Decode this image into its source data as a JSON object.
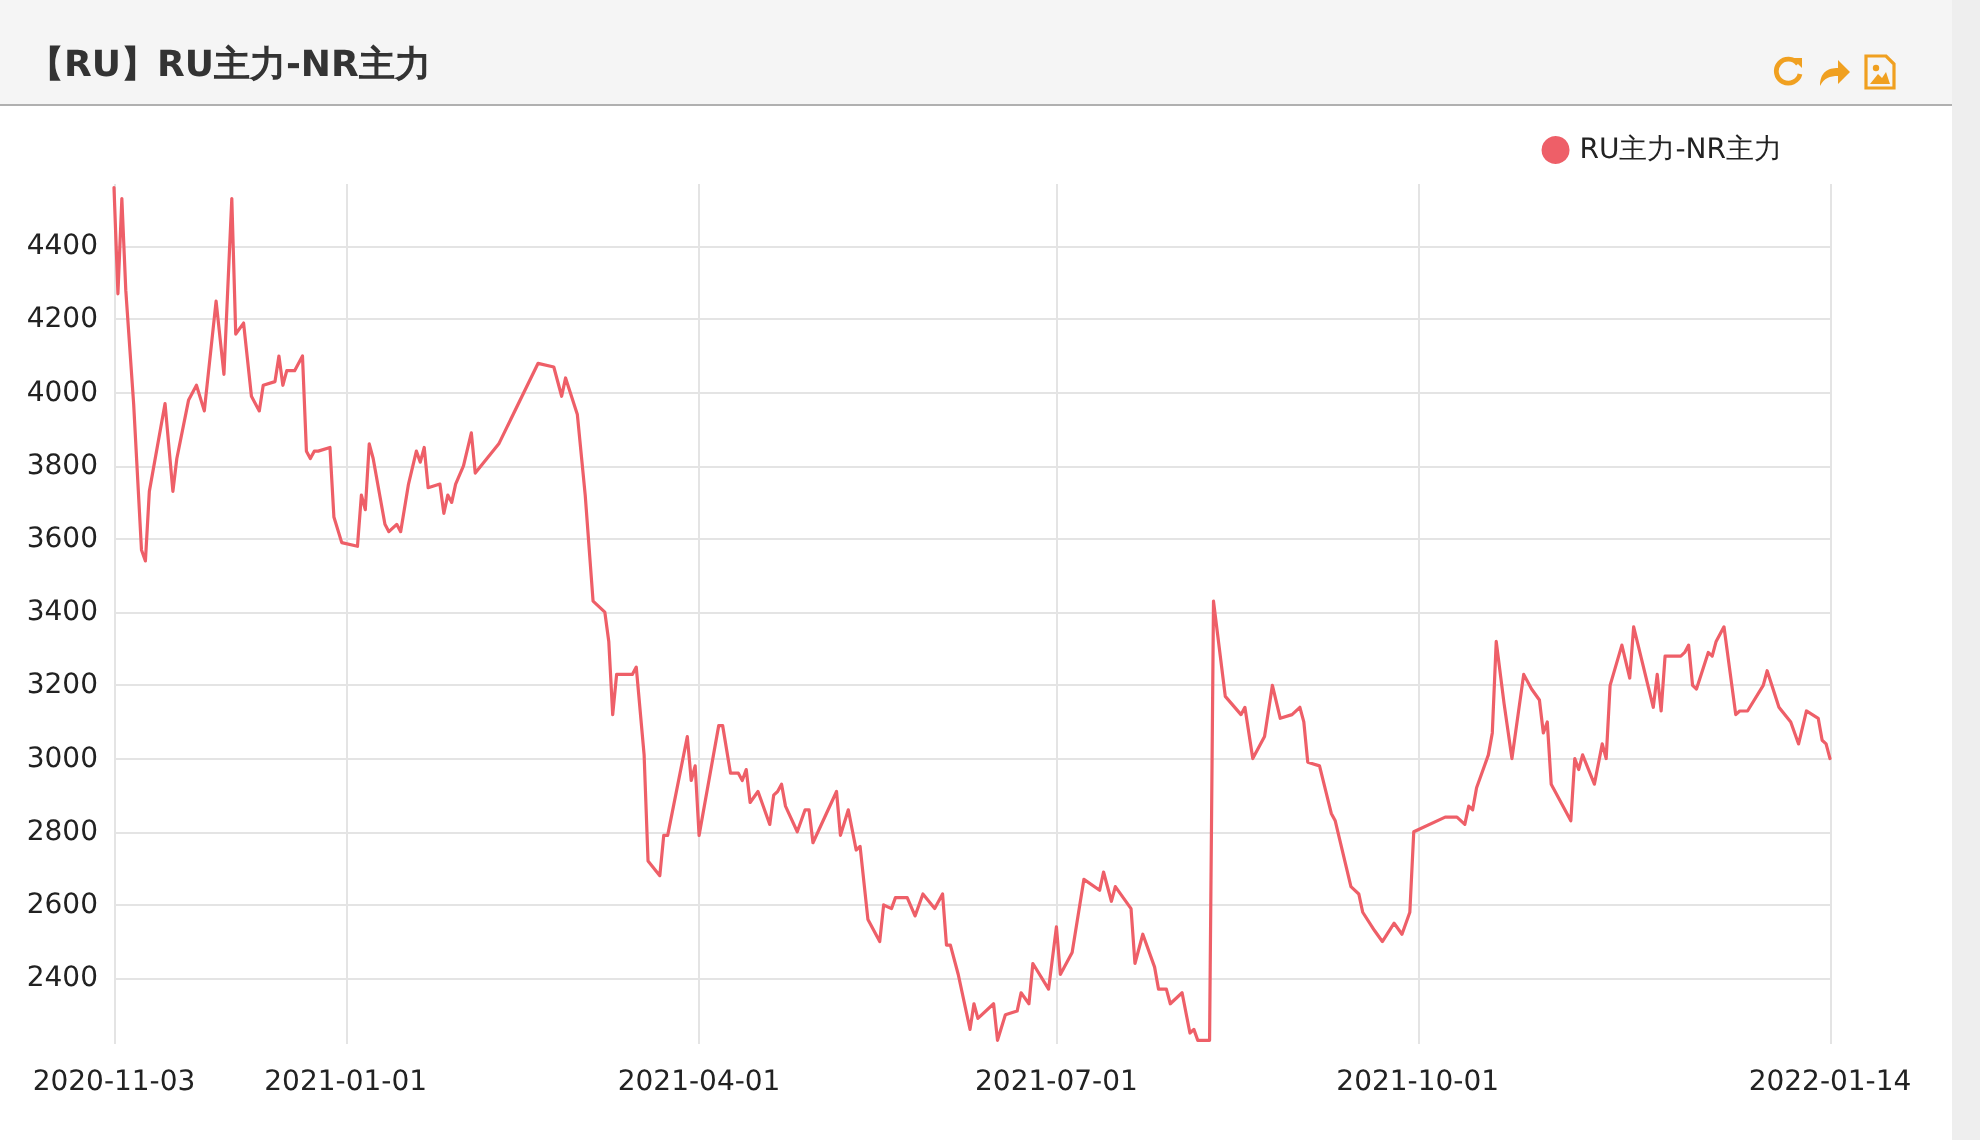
{
  "chart_data": {
    "type": "line",
    "title": "【RU】RU主力-NR主力",
    "xlim": [
      "2020-11-03",
      "2022-01-14"
    ],
    "xticks": [
      "2020-11-03",
      "2021-01-01",
      "2021-04-01",
      "2021-07-01",
      "2021-10-01",
      "2022-01-14"
    ],
    "ylim": [
      2220,
      4570
    ],
    "yticks": [
      2400,
      2600,
      2800,
      3000,
      3200,
      3400,
      3600,
      3800,
      4000,
      4200,
      4400
    ],
    "grid": true,
    "legend": "top right",
    "marker": "none",
    "line_style": "solid",
    "series": [
      {
        "name": "RU主力-NR主力",
        "color": "#ee5f68",
        "x": [
          "2020-11-03",
          "2020-11-04",
          "2020-11-05",
          "2020-11-06",
          "2020-11-08",
          "2020-11-10",
          "2020-11-11",
          "2020-11-12",
          "2020-11-16",
          "2020-11-18",
          "2020-11-19",
          "2020-11-22",
          "2020-11-24",
          "2020-11-26",
          "2020-11-29",
          "2020-12-01",
          "2020-12-03",
          "2020-12-04",
          "2020-12-06",
          "2020-12-08",
          "2020-12-10",
          "2020-12-11",
          "2020-12-14",
          "2020-12-15",
          "2020-12-16",
          "2020-12-17",
          "2020-12-19",
          "2020-12-21",
          "2020-12-22",
          "2020-12-23",
          "2020-12-24",
          "2020-12-25",
          "2020-12-28",
          "2020-12-29",
          "2020-12-31",
          "2021-01-04",
          "2021-01-05",
          "2021-01-06",
          "2021-01-07",
          "2021-01-08",
          "2021-01-11",
          "2021-01-12",
          "2021-01-14",
          "2021-01-15",
          "2021-01-17",
          "2021-01-19",
          "2021-01-20",
          "2021-01-21",
          "2021-01-22",
          "2021-01-25",
          "2021-01-26",
          "2021-01-27",
          "2021-01-28",
          "2021-01-29",
          "2021-01-31",
          "2021-02-02",
          "2021-02-03",
          "2021-02-09",
          "2021-02-19",
          "2021-02-23",
          "2021-02-25",
          "2021-02-26",
          "2021-03-01",
          "2021-03-03",
          "2021-03-05",
          "2021-03-08",
          "2021-03-09",
          "2021-03-10",
          "2021-03-11",
          "2021-03-15",
          "2021-03-16",
          "2021-03-18",
          "2021-03-19",
          "2021-03-22",
          "2021-03-23",
          "2021-03-24",
          "2021-03-29",
          "2021-03-30",
          "2021-03-31",
          "2021-04-01",
          "2021-04-06",
          "2021-04-07",
          "2021-04-09",
          "2021-04-11",
          "2021-04-12",
          "2021-04-13",
          "2021-04-14",
          "2021-04-16",
          "2021-04-19",
          "2021-04-20",
          "2021-04-21",
          "2021-04-22",
          "2021-04-23",
          "2021-04-26",
          "2021-04-28",
          "2021-04-29",
          "2021-04-30",
          "2021-05-06",
          "2021-05-07",
          "2021-05-09",
          "2021-05-11",
          "2021-05-12",
          "2021-05-14",
          "2021-05-17",
          "2021-05-18",
          "2021-05-20",
          "2021-05-21",
          "2021-05-24",
          "2021-05-26",
          "2021-05-28",
          "2021-05-31",
          "2021-06-02",
          "2021-06-03",
          "2021-06-04",
          "2021-06-06",
          "2021-06-09",
          "2021-06-10",
          "2021-06-11",
          "2021-06-15",
          "2021-06-16",
          "2021-06-18",
          "2021-06-21",
          "2021-06-22",
          "2021-06-24",
          "2021-06-25",
          "2021-06-29",
          "2021-07-01",
          "2021-07-02",
          "2021-07-05",
          "2021-07-08",
          "2021-07-12",
          "2021-07-13",
          "2021-07-15",
          "2021-07-16",
          "2021-07-20",
          "2021-07-21",
          "2021-07-23",
          "2021-07-26",
          "2021-07-27",
          "2021-07-29",
          "2021-07-30",
          "2021-08-02",
          "2021-08-04",
          "2021-08-05",
          "2021-08-06",
          "2021-08-09",
          "2021-08-10",
          "2021-08-13",
          "2021-08-17",
          "2021-08-18",
          "2021-08-20",
          "2021-08-23",
          "2021-08-25",
          "2021-08-27",
          "2021-08-30",
          "2021-09-01",
          "2021-09-02",
          "2021-09-03",
          "2021-09-06",
          "2021-09-09",
          "2021-09-10",
          "2021-09-14",
          "2021-09-16",
          "2021-09-17",
          "2021-09-20",
          "2021-09-22",
          "2021-09-25",
          "2021-09-27",
          "2021-09-29",
          "2021-09-30",
          "2021-10-08",
          "2021-10-11",
          "2021-10-13",
          "2021-10-14",
          "2021-10-15",
          "2021-10-16",
          "2021-10-19",
          "2021-10-20",
          "2021-10-21",
          "2021-10-23",
          "2021-10-25",
          "2021-10-28",
          "2021-10-30",
          "2021-11-01",
          "2021-11-02",
          "2021-11-03",
          "2021-11-04",
          "2021-11-09",
          "2021-11-10",
          "2021-11-11",
          "2021-11-12",
          "2021-11-15",
          "2021-11-17",
          "2021-11-18",
          "2021-11-19",
          "2021-11-22",
          "2021-11-24",
          "2021-11-25",
          "2021-11-30",
          "2021-12-01",
          "2021-12-02",
          "2021-12-03",
          "2021-12-07",
          "2021-12-08",
          "2021-12-09",
          "2021-12-10",
          "2021-12-11",
          "2021-12-14",
          "2021-12-15",
          "2021-12-16",
          "2021-12-18",
          "2021-12-21",
          "2021-12-22",
          "2021-12-24",
          "2021-12-28",
          "2021-12-29",
          "2022-01-01",
          "2022-01-04",
          "2022-01-06",
          "2022-01-08",
          "2022-01-11",
          "2022-01-12",
          "2022-01-13",
          "2022-01-14"
        ],
        "values": [
          4560,
          4270,
          4530,
          4280,
          3970,
          3570,
          3540,
          3730,
          3970,
          3730,
          3820,
          3980,
          4020,
          3950,
          4250,
          4050,
          4530,
          4160,
          4190,
          3990,
          3950,
          4020,
          4030,
          4100,
          4020,
          4060,
          4060,
          4100,
          3840,
          3820,
          3840,
          3840,
          3850,
          3660,
          3590,
          3580,
          3720,
          3680,
          3860,
          3820,
          3640,
          3620,
          3640,
          3620,
          3750,
          3840,
          3810,
          3850,
          3740,
          3750,
          3670,
          3720,
          3700,
          3750,
          3800,
          3890,
          3780,
          3860,
          4080,
          4070,
          3990,
          4040,
          3940,
          3720,
          3430,
          3400,
          3320,
          3120,
          3230,
          3230,
          3250,
          3010,
          2720,
          2680,
          2790,
          2790,
          3060,
          2940,
          2980,
          2790,
          3090,
          3090,
          2960,
          2960,
          2940,
          2970,
          2880,
          2910,
          2820,
          2900,
          2910,
          2930,
          2870,
          2800,
          2860,
          2860,
          2770,
          2910,
          2790,
          2860,
          2750,
          2760,
          2560,
          2500,
          2600,
          2590,
          2620,
          2620,
          2570,
          2630,
          2590,
          2630,
          2490,
          2490,
          2410,
          2260,
          2330,
          2290,
          2330,
          2230,
          2300,
          2310,
          2360,
          2330,
          2440,
          2370,
          2540,
          2410,
          2470,
          2670,
          2640,
          2690,
          2610,
          2650,
          2590,
          2440,
          2520,
          2430,
          2370,
          2370,
          2330,
          2360,
          2250,
          2260,
          2230,
          2230,
          3430,
          3170,
          3120,
          3140,
          3000,
          3060,
          3200,
          3110,
          3120,
          3140,
          3100,
          2990,
          2980,
          2850,
          2830,
          2650,
          2630,
          2580,
          2530,
          2500,
          2550,
          2520,
          2580,
          2800,
          2840,
          2840,
          2820,
          2870,
          2860,
          2920,
          3010,
          3070,
          3320,
          3150,
          3000,
          3230,
          3190,
          3160,
          3070,
          3100,
          2930,
          2830,
          3000,
          2970,
          3010,
          2930,
          3040,
          3000,
          3200,
          3310,
          3220,
          3360,
          3140,
          3230,
          3130,
          3280,
          3280,
          3290,
          3310,
          3200,
          3190,
          3290,
          3280,
          3320,
          3360,
          3120,
          3130,
          3130,
          3200,
          3240,
          3140,
          3100,
          3040,
          3130,
          3110,
          3050,
          3040,
          3000
        ]
      }
    ]
  }
}
